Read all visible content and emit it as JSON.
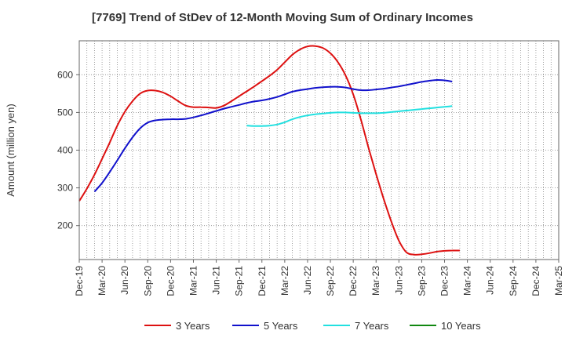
{
  "chart_data": {
    "type": "line",
    "title": "[7769]  Trend of StDev of 12-Month Moving Sum of Ordinary Incomes",
    "xlabel": "",
    "ylabel": "Amount (million yen)",
    "ylim": [
      110,
      690
    ],
    "yticks": [
      200,
      300,
      400,
      500,
      600
    ],
    "xticks": [
      "Dec-19",
      "Mar-20",
      "Jun-20",
      "Sep-20",
      "Dec-20",
      "Mar-21",
      "Jun-21",
      "Sep-21",
      "Dec-21",
      "Mar-22",
      "Jun-22",
      "Sep-22",
      "Dec-22",
      "Mar-23",
      "Jun-23",
      "Sep-23",
      "Dec-23",
      "Mar-24",
      "Jun-24",
      "Sep-24",
      "Dec-24",
      "Mar-25"
    ],
    "grid": true,
    "legend_position": "bottom",
    "series": [
      {
        "name": "3 Years",
        "color": "#dd1111",
        "values": [
          265,
          298,
          335,
          377,
          420,
          465,
          502,
          530,
          550,
          558,
          558,
          553,
          543,
          530,
          518,
          514,
          514,
          513,
          512,
          518,
          530,
          543,
          556,
          569,
          583,
          597,
          613,
          633,
          653,
          667,
          675,
          676,
          671,
          657,
          633,
          598,
          548,
          482,
          407,
          337,
          271,
          211,
          160,
          129,
          123,
          124,
          127,
          131,
          133,
          134,
          134
        ]
      },
      {
        "name": "5 Years",
        "color": "#1111cc",
        "values": [
          null,
          null,
          290,
          313,
          342,
          373,
          405,
          434,
          458,
          473,
          479,
          481,
          482,
          482,
          483,
          487,
          492,
          498,
          504,
          510,
          515,
          520,
          525,
          529,
          532,
          536,
          541,
          548,
          555,
          559,
          562,
          565,
          567,
          568,
          568,
          566,
          562,
          559,
          559,
          561,
          563,
          566,
          569,
          573,
          577,
          581,
          584,
          586,
          585,
          582,
          null
        ]
      },
      {
        "name": "7 Years",
        "color": "#22e0e0",
        "values": [
          null,
          null,
          null,
          null,
          null,
          null,
          null,
          null,
          null,
          null,
          null,
          null,
          null,
          null,
          null,
          null,
          null,
          null,
          null,
          null,
          null,
          null,
          465,
          464,
          464,
          465,
          468,
          474,
          482,
          488,
          492,
          495,
          497,
          499,
          500,
          500,
          499,
          498,
          498,
          498,
          499,
          501,
          503,
          505,
          507,
          509,
          511,
          513,
          515,
          517,
          null
        ]
      },
      {
        "name": "10 Years",
        "color": "#118811",
        "values": []
      }
    ]
  }
}
